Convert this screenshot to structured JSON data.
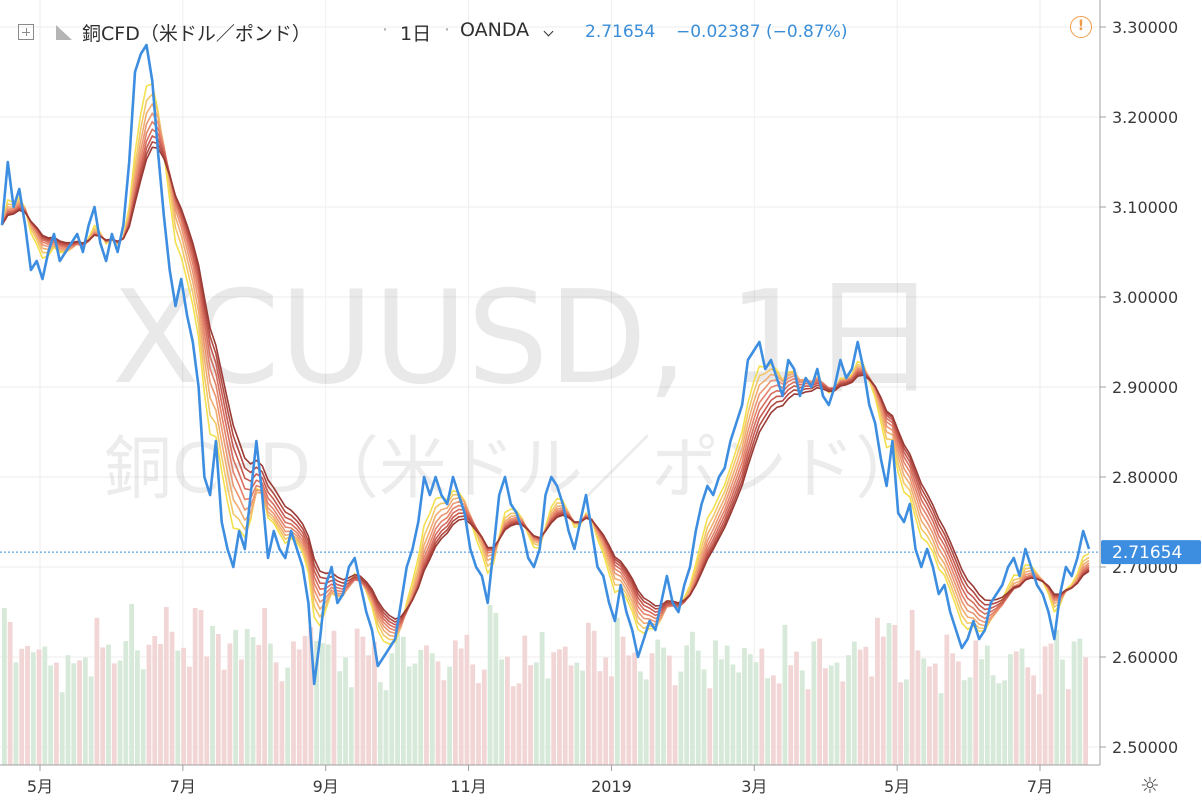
{
  "header": {
    "symbol": "銅CFD（米ドル／ポンド）",
    "interval": "1日",
    "exchange": "OANDA",
    "last_price": "2.71654",
    "change": "−0.02387 (−0.87%)",
    "separator": "·",
    "alert_glyph": "!"
  },
  "watermark": {
    "symbol": "XCUUSD, 1日",
    "description": "銅CFD（米ドル／ポンド）"
  },
  "icons": {
    "add": "plus-icon",
    "symbol": "flag-icon",
    "dropdown": "chevron-down-icon",
    "alert": "alert-icon",
    "settings": "gear-icon"
  },
  "colors": {
    "price_line": "#3d8ee0",
    "price_label_bg": "#3d8ee0",
    "volume_up": "#d7e9d8",
    "volume_down": "#f2d6d6",
    "grid": "#eeeeee",
    "ribbon": [
      "#f3e04f",
      "#f3c768",
      "#f0ad72",
      "#eb9672",
      "#e4836a",
      "#d66e5f",
      "#c65a50",
      "#b24a42",
      "#9a3a34"
    ]
  },
  "chart_data": {
    "type": "line",
    "title": "銅CFD（米ドル／ポンド）",
    "xlabel": "",
    "ylabel": "",
    "ylim": [
      2.48,
      3.33
    ],
    "y_ticks": [
      "3.30000",
      "3.20000",
      "3.10000",
      "3.00000",
      "2.90000",
      "2.80000",
      "2.70000",
      "2.60000",
      "2.50000"
    ],
    "x_ticks": [
      "5月",
      "7月",
      "9月",
      "11月",
      "2019",
      "3月",
      "5月",
      "7月"
    ],
    "last_price_label": "2.71654",
    "grid": true,
    "series": [
      {
        "points": [
          [
            0,
            3.08
          ],
          [
            2,
            3.15
          ],
          [
            4,
            3.1
          ],
          [
            6,
            3.12
          ],
          [
            8,
            3.08
          ],
          [
            10,
            3.03
          ],
          [
            12,
            3.04
          ],
          [
            14,
            3.02
          ],
          [
            16,
            3.05
          ],
          [
            18,
            3.07
          ],
          [
            20,
            3.04
          ],
          [
            22,
            3.05
          ],
          [
            24,
            3.06
          ],
          [
            26,
            3.07
          ],
          [
            28,
            3.05
          ],
          [
            30,
            3.08
          ],
          [
            32,
            3.1
          ],
          [
            34,
            3.06
          ],
          [
            36,
            3.04
          ],
          [
            38,
            3.07
          ],
          [
            40,
            3.05
          ],
          [
            42,
            3.08
          ],
          [
            44,
            3.15
          ],
          [
            46,
            3.25
          ],
          [
            48,
            3.27
          ],
          [
            50,
            3.28
          ],
          [
            52,
            3.24
          ],
          [
            54,
            3.16
          ],
          [
            56,
            3.09
          ],
          [
            58,
            3.03
          ],
          [
            60,
            2.99
          ],
          [
            62,
            3.02
          ],
          [
            64,
            2.98
          ],
          [
            66,
            2.95
          ],
          [
            68,
            2.9
          ],
          [
            70,
            2.8
          ],
          [
            72,
            2.78
          ],
          [
            74,
            2.84
          ],
          [
            76,
            2.75
          ],
          [
            78,
            2.72
          ],
          [
            80,
            2.7
          ],
          [
            82,
            2.74
          ],
          [
            84,
            2.72
          ],
          [
            86,
            2.78
          ],
          [
            88,
            2.84
          ],
          [
            90,
            2.78
          ],
          [
            92,
            2.71
          ],
          [
            94,
            2.74
          ],
          [
            96,
            2.72
          ],
          [
            98,
            2.71
          ],
          [
            100,
            2.74
          ],
          [
            102,
            2.72
          ],
          [
            104,
            2.7
          ],
          [
            106,
            2.66
          ],
          [
            108,
            2.57
          ],
          [
            110,
            2.62
          ],
          [
            112,
            2.68
          ],
          [
            114,
            2.7
          ],
          [
            116,
            2.66
          ],
          [
            118,
            2.67
          ],
          [
            120,
            2.7
          ],
          [
            122,
            2.71
          ],
          [
            124,
            2.68
          ],
          [
            126,
            2.65
          ],
          [
            128,
            2.63
          ],
          [
            130,
            2.59
          ],
          [
            132,
            2.6
          ],
          [
            134,
            2.61
          ],
          [
            136,
            2.62
          ],
          [
            138,
            2.66
          ],
          [
            140,
            2.7
          ],
          [
            142,
            2.72
          ],
          [
            144,
            2.75
          ],
          [
            146,
            2.8
          ],
          [
            148,
            2.78
          ],
          [
            150,
            2.8
          ],
          [
            152,
            2.78
          ],
          [
            154,
            2.77
          ],
          [
            156,
            2.8
          ],
          [
            158,
            2.78
          ],
          [
            160,
            2.76
          ],
          [
            162,
            2.72
          ],
          [
            164,
            2.7
          ],
          [
            166,
            2.69
          ],
          [
            168,
            2.66
          ],
          [
            170,
            2.72
          ],
          [
            172,
            2.78
          ],
          [
            174,
            2.8
          ],
          [
            176,
            2.77
          ],
          [
            178,
            2.76
          ],
          [
            180,
            2.74
          ],
          [
            182,
            2.71
          ],
          [
            184,
            2.7
          ],
          [
            186,
            2.72
          ],
          [
            188,
            2.78
          ],
          [
            190,
            2.8
          ],
          [
            192,
            2.79
          ],
          [
            194,
            2.77
          ],
          [
            196,
            2.74
          ],
          [
            198,
            2.72
          ],
          [
            200,
            2.75
          ],
          [
            202,
            2.78
          ],
          [
            204,
            2.74
          ],
          [
            206,
            2.7
          ],
          [
            208,
            2.69
          ],
          [
            210,
            2.66
          ],
          [
            212,
            2.64
          ],
          [
            214,
            2.68
          ],
          [
            216,
            2.65
          ],
          [
            218,
            2.63
          ],
          [
            220,
            2.6
          ],
          [
            222,
            2.62
          ],
          [
            224,
            2.64
          ],
          [
            226,
            2.63
          ],
          [
            228,
            2.66
          ],
          [
            230,
            2.69
          ],
          [
            232,
            2.66
          ],
          [
            234,
            2.65
          ],
          [
            236,
            2.68
          ],
          [
            238,
            2.7
          ],
          [
            240,
            2.74
          ],
          [
            242,
            2.77
          ],
          [
            244,
            2.79
          ],
          [
            246,
            2.78
          ],
          [
            248,
            2.8
          ],
          [
            250,
            2.81
          ],
          [
            252,
            2.84
          ],
          [
            254,
            2.86
          ],
          [
            256,
            2.88
          ],
          [
            258,
            2.93
          ],
          [
            260,
            2.94
          ],
          [
            262,
            2.95
          ],
          [
            264,
            2.92
          ],
          [
            266,
            2.93
          ],
          [
            268,
            2.91
          ],
          [
            270,
            2.89
          ],
          [
            272,
            2.93
          ],
          [
            274,
            2.92
          ],
          [
            276,
            2.89
          ],
          [
            278,
            2.91
          ],
          [
            280,
            2.9
          ],
          [
            282,
            2.92
          ],
          [
            284,
            2.89
          ],
          [
            286,
            2.88
          ],
          [
            288,
            2.9
          ],
          [
            290,
            2.93
          ],
          [
            292,
            2.91
          ],
          [
            294,
            2.92
          ],
          [
            296,
            2.95
          ],
          [
            298,
            2.92
          ],
          [
            300,
            2.88
          ],
          [
            302,
            2.86
          ],
          [
            304,
            2.82
          ],
          [
            306,
            2.79
          ],
          [
            308,
            2.84
          ],
          [
            310,
            2.76
          ],
          [
            312,
            2.75
          ],
          [
            314,
            2.77
          ],
          [
            316,
            2.72
          ],
          [
            318,
            2.7
          ],
          [
            320,
            2.72
          ],
          [
            322,
            2.7
          ],
          [
            324,
            2.67
          ],
          [
            326,
            2.68
          ],
          [
            328,
            2.65
          ],
          [
            330,
            2.63
          ],
          [
            332,
            2.61
          ],
          [
            334,
            2.62
          ],
          [
            336,
            2.64
          ],
          [
            338,
            2.62
          ],
          [
            340,
            2.63
          ],
          [
            342,
            2.66
          ],
          [
            344,
            2.67
          ],
          [
            346,
            2.68
          ],
          [
            348,
            2.7
          ],
          [
            350,
            2.71
          ],
          [
            352,
            2.69
          ],
          [
            354,
            2.72
          ],
          [
            356,
            2.7
          ],
          [
            358,
            2.68
          ],
          [
            360,
            2.67
          ],
          [
            362,
            2.65
          ],
          [
            364,
            2.62
          ],
          [
            366,
            2.67
          ],
          [
            368,
            2.7
          ],
          [
            370,
            2.69
          ],
          [
            372,
            2.71
          ],
          [
            374,
            2.74
          ],
          [
            376,
            2.72
          ]
        ]
      }
    ]
  }
}
